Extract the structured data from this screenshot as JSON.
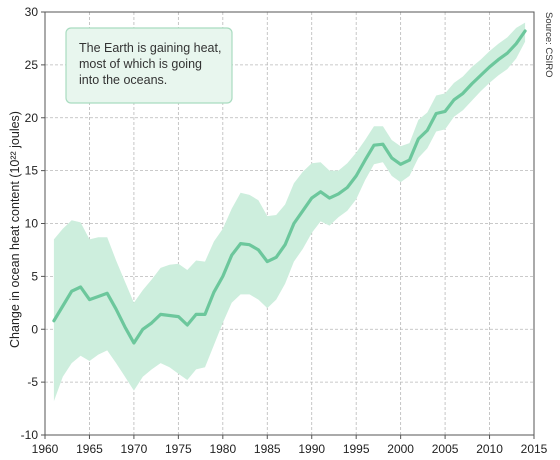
{
  "chart_data": {
    "type": "line",
    "title": "",
    "xlabel": "",
    "ylabel": "Change in ocean heat content (10²² joules)",
    "source": "Source: CSIRO",
    "annotation": [
      "The Earth is gaining heat,",
      "most of which is going",
      "into the oceans."
    ],
    "xlim": [
      1960,
      2015
    ],
    "ylim": [
      -10,
      30
    ],
    "x_ticks": [
      1960,
      1965,
      1970,
      1975,
      1980,
      1985,
      1990,
      1995,
      2000,
      2005,
      2010,
      2015
    ],
    "y_ticks": [
      -10,
      -5,
      0,
      5,
      10,
      15,
      20,
      25,
      30
    ],
    "x_tick_labels": [
      "1960",
      "1965",
      "1970",
      "1975",
      "1980",
      "1985",
      "1990",
      "1995",
      "2000",
      "2005",
      "2010",
      "2015"
    ],
    "y_tick_labels": [
      "-10",
      "-5",
      "0",
      "5",
      "10",
      "15",
      "20",
      "25",
      "30"
    ],
    "grid": true,
    "colors": {
      "line": "#6cc79c",
      "band": "#cdeedd",
      "note_fill": "#e8f6ee",
      "note_border": "#a9dcc0"
    },
    "x": [
      1961,
      1962,
      1963,
      1964,
      1965,
      1966,
      1967,
      1968,
      1969,
      1970,
      1971,
      1972,
      1973,
      1974,
      1975,
      1976,
      1977,
      1978,
      1979,
      1980,
      1981,
      1982,
      1983,
      1984,
      1985,
      1986,
      1987,
      1988,
      1989,
      1990,
      1991,
      1992,
      1993,
      1994,
      1995,
      1996,
      1997,
      1998,
      1999,
      2000,
      2001,
      2002,
      2003,
      2004,
      2005,
      2006,
      2007,
      2008,
      2009,
      2010,
      2011,
      2012,
      2013,
      2014
    ],
    "series": [
      {
        "values": [
          0.8,
          2.2,
          3.6,
          4.0,
          2.8,
          3.1,
          3.4,
          1.9,
          0.2,
          -1.3,
          0.0,
          0.6,
          1.4,
          1.3,
          1.2,
          0.4,
          1.4,
          1.4,
          3.5,
          5.0,
          7.0,
          8.1,
          8.0,
          7.5,
          6.4,
          6.8,
          8.0,
          10.0,
          11.2,
          12.4,
          13.0,
          12.4,
          12.8,
          13.4,
          14.5,
          16.0,
          17.4,
          17.5,
          16.2,
          15.6,
          16.0,
          18.0,
          18.8,
          20.4,
          20.6,
          21.7,
          22.3,
          23.2,
          24.0,
          24.8,
          25.5,
          26.1,
          27.0,
          28.2
        ]
      }
    ],
    "band_upper": [
      8.5,
      9.5,
      10.3,
      10.1,
      8.5,
      8.7,
      8.7,
      6.5,
      4.5,
      2.5,
      3.7,
      4.7,
      5.8,
      6.1,
      6.2,
      5.6,
      6.5,
      6.4,
      8.3,
      9.5,
      11.4,
      12.9,
      12.7,
      12.2,
      10.7,
      10.8,
      11.8,
      13.8,
      14.9,
      15.7,
      15.8,
      15.0,
      15.0,
      15.7,
      16.7,
      17.9,
      19.2,
      19.2,
      17.9,
      17.3,
      17.6,
      19.8,
      20.5,
      22.1,
      22.3,
      23.3,
      23.9,
      24.8,
      25.5,
      26.3,
      27.0,
      27.6,
      28.5,
      29.0
    ],
    "band_lower": [
      -6.8,
      -4.5,
      -3.2,
      -2.5,
      -3.0,
      -2.4,
      -2.0,
      -3.2,
      -4.5,
      -5.8,
      -4.5,
      -3.8,
      -3.2,
      -3.6,
      -4.2,
      -4.8,
      -3.8,
      -3.6,
      -1.5,
      0.6,
      2.5,
      3.3,
      3.3,
      2.8,
      2.0,
      2.8,
      4.3,
      6.4,
      7.6,
      9.1,
      10.2,
      9.8,
      10.6,
      11.2,
      12.3,
      14.1,
      15.6,
      15.8,
      14.5,
      13.9,
      14.5,
      16.2,
      17.1,
      18.7,
      18.9,
      20.1,
      20.7,
      21.6,
      22.5,
      23.3,
      24.0,
      24.6,
      25.6,
      27.2
    ]
  }
}
